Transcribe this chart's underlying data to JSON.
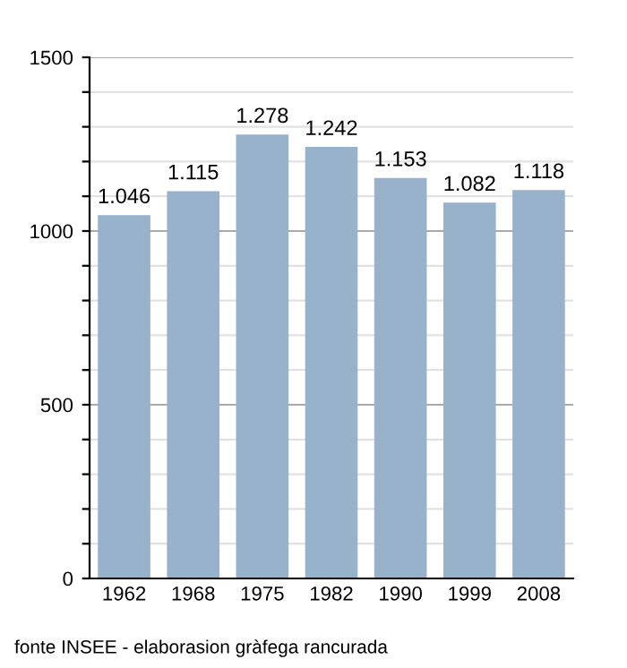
{
  "chart_data": {
    "type": "bar",
    "categories": [
      "1962",
      "1968",
      "1975",
      "1982",
      "1990",
      "1999",
      "2008"
    ],
    "values": [
      1046,
      1115,
      1278,
      1242,
      1153,
      1082,
      1118
    ],
    "value_labels": [
      "1.046",
      "1.115",
      "1.278",
      "1.242",
      "1.153",
      "1.082",
      "1.118"
    ],
    "color": "#98b2cb",
    "ylim": [
      0,
      1500
    ],
    "yticks": [
      0,
      {
        "value": 100,
        "label": null
      },
      {
        "value": 200,
        "label": null
      },
      {
        "value": 300,
        "label": null
      },
      {
        "value": 400,
        "label": null
      },
      500,
      {
        "value": 600,
        "label": null
      },
      {
        "value": 700,
        "label": null
      },
      {
        "value": 800,
        "label": null
      },
      {
        "value": 900,
        "label": null
      },
      1000,
      {
        "value": 1100,
        "label": null
      },
      {
        "value": 1200,
        "label": null
      },
      {
        "value": 1300,
        "label": null
      },
      {
        "value": 1400,
        "label": null
      },
      1500
    ],
    "grid": "y",
    "annotations": [
      "fonte INSEE - elaborasion gràfega rancurada"
    ]
  }
}
